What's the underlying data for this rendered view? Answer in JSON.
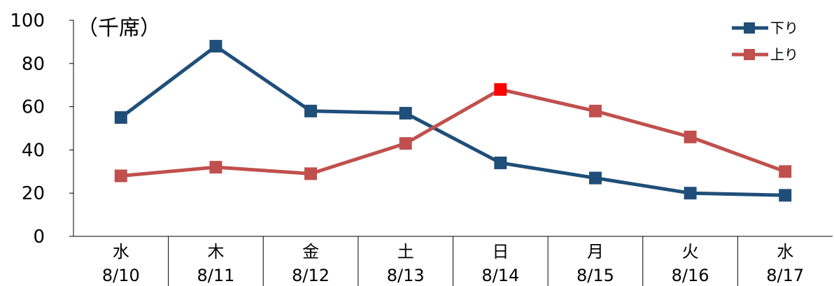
{
  "chart_data": {
    "type": "line",
    "unit_label": "（千席）",
    "ylim": [
      0,
      100
    ],
    "yticks": [
      "0",
      "20",
      "40",
      "60",
      "80",
      "100"
    ],
    "grid": false,
    "legend_position": "top-right",
    "categories": [
      {
        "day": "水",
        "date": "8/10",
        "highlight": false
      },
      {
        "day": "木",
        "date": "8/11",
        "highlight": true
      },
      {
        "day": "金",
        "date": "8/12",
        "highlight": false
      },
      {
        "day": "土",
        "date": "8/13",
        "highlight": true
      },
      {
        "day": "日",
        "date": "8/14",
        "highlight": true
      },
      {
        "day": "月",
        "date": "8/15",
        "highlight": false
      },
      {
        "day": "火",
        "date": "8/16",
        "highlight": false
      },
      {
        "day": "水",
        "date": "8/17",
        "highlight": false
      }
    ],
    "series": [
      {
        "name": "下り",
        "color": "#1f4e79",
        "values": [
          55,
          88,
          58,
          57,
          34,
          27,
          20,
          19
        ]
      },
      {
        "name": "上り",
        "color": "#c0504d",
        "values": [
          28,
          32,
          29,
          43,
          68,
          58,
          46,
          30
        ],
        "special_marker": {
          "index": 4,
          "color": "#ff0000"
        }
      }
    ],
    "highlight_color": "#ff0000"
  }
}
